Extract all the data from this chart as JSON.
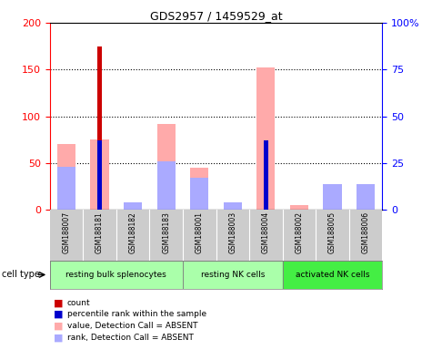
{
  "title": "GDS2957 / 1459529_at",
  "samples": [
    "GSM188007",
    "GSM188181",
    "GSM188182",
    "GSM188183",
    "GSM188001",
    "GSM188003",
    "GSM188004",
    "GSM188002",
    "GSM188005",
    "GSM188006"
  ],
  "count_values": [
    0,
    175,
    0,
    0,
    0,
    0,
    0,
    0,
    0,
    0
  ],
  "count_color": "#cc0000",
  "percentile_values": [
    0,
    37,
    0,
    0,
    0,
    0,
    37,
    0,
    0,
    0
  ],
  "percentile_color": "#0000cc",
  "absent_value_values": [
    70,
    75,
    0,
    92,
    45,
    7,
    152,
    5,
    15,
    25
  ],
  "absent_value_color": "#ffaaaa",
  "absent_rank_values": [
    23,
    0,
    4,
    26,
    17,
    4,
    0,
    0,
    14,
    14
  ],
  "absent_rank_color": "#aaaaff",
  "ylim_left": [
    0,
    200
  ],
  "ylim_right": [
    0,
    100
  ],
  "yticks_left": [
    0,
    50,
    100,
    150,
    200
  ],
  "yticks_right": [
    0,
    25,
    50,
    75,
    100
  ],
  "yticklabels_right": [
    "0",
    "25",
    "50",
    "75",
    "100%"
  ],
  "grid_values": [
    50,
    100,
    150
  ],
  "wide_bar_width": 0.55,
  "narrow_bar_width": 0.15,
  "tick_label_area_color": "#cccccc",
  "groups": [
    {
      "name": "resting bulk splenocytes",
      "start": 0,
      "end": 3,
      "color": "#aaffaa"
    },
    {
      "name": "resting NK cells",
      "start": 4,
      "end": 6,
      "color": "#aaffaa"
    },
    {
      "name": "activated NK cells",
      "start": 7,
      "end": 9,
      "color": "#44ee44"
    }
  ],
  "legend_items": [
    {
      "label": "count",
      "color": "#cc0000"
    },
    {
      "label": "percentile rank within the sample",
      "color": "#0000cc"
    },
    {
      "label": "value, Detection Call = ABSENT",
      "color": "#ffaaaa"
    },
    {
      "label": "rank, Detection Call = ABSENT",
      "color": "#aaaaff"
    }
  ],
  "cell_type_label": "cell type"
}
